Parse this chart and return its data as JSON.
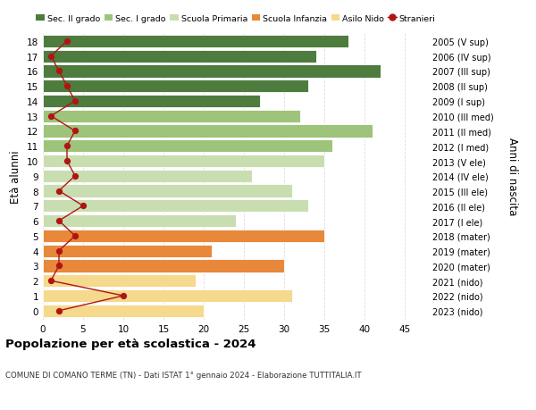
{
  "ages": [
    0,
    1,
    2,
    3,
    4,
    5,
    6,
    7,
    8,
    9,
    10,
    11,
    12,
    13,
    14,
    15,
    16,
    17,
    18
  ],
  "bar_values": [
    20,
    31,
    19,
    30,
    21,
    35,
    24,
    33,
    31,
    26,
    35,
    36,
    41,
    32,
    27,
    33,
    42,
    34,
    38
  ],
  "stranieri": [
    2,
    10,
    1,
    2,
    2,
    4,
    2,
    5,
    2,
    4,
    3,
    3,
    4,
    1,
    4,
    3,
    2,
    1,
    3
  ],
  "bar_colors": [
    "#f5d98c",
    "#f5d98c",
    "#f5d98c",
    "#e8883a",
    "#e8883a",
    "#e8883a",
    "#c9deb0",
    "#c9deb0",
    "#c9deb0",
    "#c9deb0",
    "#c9deb0",
    "#9dc47a",
    "#9dc47a",
    "#9dc47a",
    "#4d7c3e",
    "#4d7c3e",
    "#4d7c3e",
    "#4d7c3e",
    "#4d7c3e"
  ],
  "right_labels": [
    "2023 (nido)",
    "2022 (nido)",
    "2021 (nido)",
    "2020 (mater)",
    "2019 (mater)",
    "2018 (mater)",
    "2017 (I ele)",
    "2016 (II ele)",
    "2015 (III ele)",
    "2014 (IV ele)",
    "2013 (V ele)",
    "2012 (I med)",
    "2011 (II med)",
    "2010 (III med)",
    "2009 (I sup)",
    "2008 (II sup)",
    "2007 (III sup)",
    "2006 (IV sup)",
    "2005 (V sup)"
  ],
  "legend_labels": [
    "Sec. II grado",
    "Sec. I grado",
    "Scuola Primaria",
    "Scuola Infanzia",
    "Asilo Nido",
    "Stranieri"
  ],
  "legend_colors": [
    "#4d7c3e",
    "#9dc47a",
    "#c9deb0",
    "#e8883a",
    "#f5d98c",
    "#b01515"
  ],
  "title": "Popolazione per età scolastica - 2024",
  "subtitle": "COMUNE DI COMANO TERME (TN) - Dati ISTAT 1° gennaio 2024 - Elaborazione TUTTITALIA.IT",
  "ylabel": "Età alunni",
  "right_ylabel": "Anni di nascita",
  "xlim": [
    0,
    48
  ],
  "xticks": [
    0,
    5,
    10,
    15,
    20,
    25,
    30,
    35,
    40,
    45
  ],
  "stranieri_color": "#b01515",
  "background_color": "#ffffff",
  "grid_color": "#dddddd"
}
